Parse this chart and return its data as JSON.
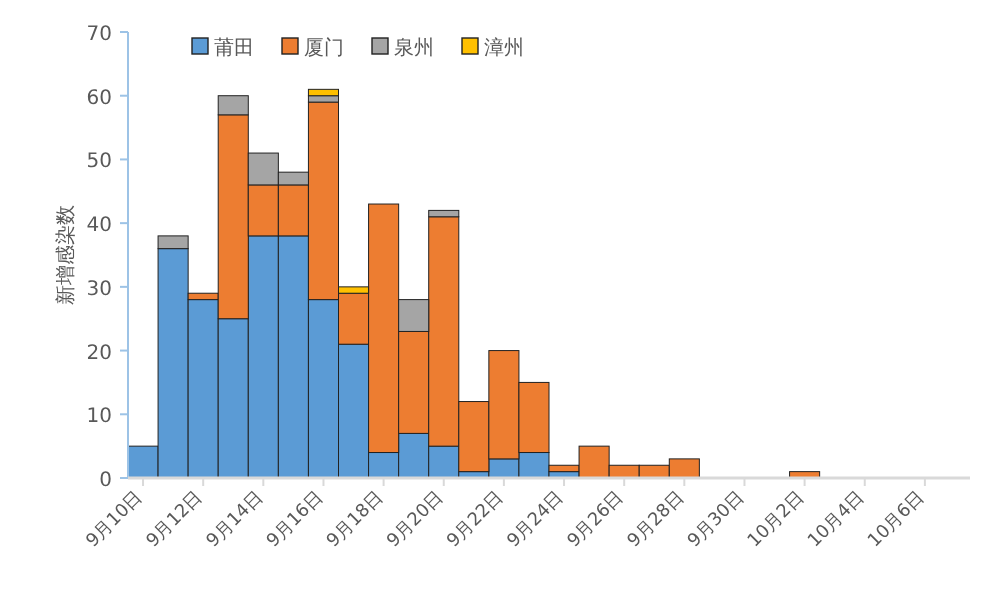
{
  "chart_data": {
    "type": "bar",
    "stacked": true,
    "ylabel": "新增感染数",
    "legend": "top",
    "grid": false,
    "categories": [
      "9月10日",
      null,
      "9月12日",
      null,
      "9月14日",
      null,
      "9月16日",
      null,
      "9月18日",
      null,
      "9月20日",
      null,
      "9月22日",
      null,
      "9月24日",
      null,
      "9月26日",
      null,
      "9月28日",
      null,
      "9月30日",
      null,
      "10月2日",
      null,
      "10月4日",
      null,
      "10月6日",
      null
    ],
    "ylim": [
      0,
      70
    ],
    "yticks": [
      0,
      10,
      20,
      30,
      40,
      50,
      60,
      70
    ],
    "series": [
      {
        "name": "莆田",
        "color": "#5b9bd5",
        "values": [
          5,
          36,
          28,
          25,
          38,
          38,
          28,
          21,
          4,
          7,
          5,
          1,
          3,
          4,
          1,
          0,
          0,
          0,
          0,
          0,
          0,
          0,
          0,
          0,
          0,
          0,
          0,
          0
        ]
      },
      {
        "name": "厦门",
        "color": "#ed7d31",
        "values": [
          0,
          0,
          1,
          32,
          8,
          8,
          31,
          8,
          39,
          16,
          36,
          11,
          17,
          11,
          1,
          5,
          2,
          2,
          3,
          0,
          0,
          0,
          1,
          0,
          0,
          0,
          0,
          0
        ]
      },
      {
        "name": "泉州",
        "color": "#a5a5a5",
        "values": [
          0,
          2,
          0,
          3,
          5,
          2,
          1,
          0,
          0,
          5,
          1,
          0,
          0,
          0,
          0,
          0,
          0,
          0,
          0,
          0,
          0,
          0,
          0,
          0,
          0,
          0,
          0,
          0
        ]
      },
      {
        "name": "漳州",
        "color": "#ffc000",
        "values": [
          0,
          0,
          0,
          0,
          0,
          0,
          1,
          1,
          0,
          0,
          0,
          0,
          0,
          0,
          0,
          0,
          0,
          0,
          0,
          0,
          0,
          0,
          0,
          0,
          0,
          0,
          0,
          0
        ]
      }
    ]
  }
}
